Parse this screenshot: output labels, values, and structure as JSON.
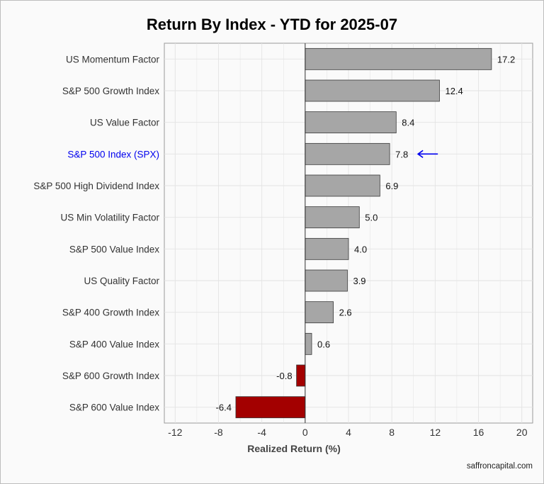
{
  "chart_data": {
    "type": "bar",
    "orientation": "horizontal",
    "title": "Return By Index - YTD for 2025-07",
    "xlabel": "Realized Return (%)",
    "ylabel": "",
    "xlim": [
      -13,
      21
    ],
    "x_ticks": [
      -12,
      -8,
      -4,
      0,
      4,
      8,
      12,
      16,
      20
    ],
    "grid": true,
    "categories": [
      "US Momentum Factor",
      "S&P 500 Growth Index",
      "US Value Factor",
      "S&P 500 Index (SPX)",
      "S&P 500 High Dividend Index",
      "US Min Volatility Factor",
      "S&P 500 Value Index",
      "US Quality Factor",
      "S&P 400 Growth Index",
      "S&P 400 Value Index",
      "S&P 600 Growth Index",
      "S&P 600 Value Index"
    ],
    "values": [
      17.2,
      12.4,
      8.4,
      7.8,
      6.9,
      5.0,
      4.0,
      3.9,
      2.6,
      0.6,
      -0.8,
      -6.4
    ],
    "value_labels": [
      "17.2",
      "12.4",
      "8.4",
      "7.8",
      "6.9",
      "5.0",
      "4.0",
      "3.9",
      "2.6",
      "0.6",
      "-0.8",
      "-6.4"
    ],
    "highlight": {
      "category": "S&P 500 Index (SPX)",
      "color": "#0000ee",
      "marker": "arrow-left-icon"
    },
    "colors": {
      "positive": "#a6a6a6",
      "negative": "#a30000",
      "bar_edge": "#3a3a3a",
      "label": "#333333",
      "grid": "#e3e3e3"
    }
  },
  "footer": {
    "source": "saffroncapital.com"
  }
}
